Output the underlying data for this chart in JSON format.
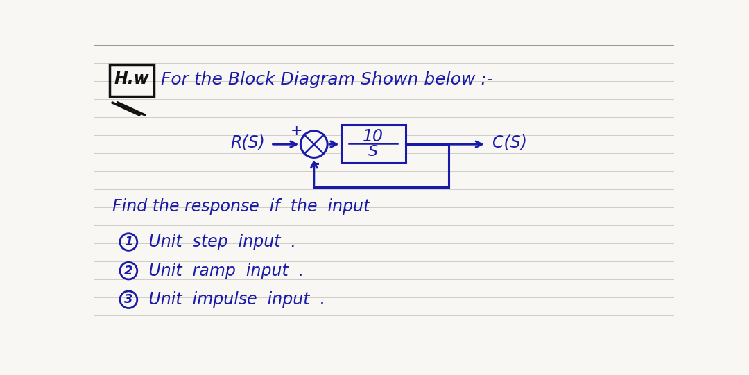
{
  "background_color": "#f8f7f4",
  "line_color": "#c8c5c0",
  "ink_color": "#1a1aaa",
  "hw_ink": "#111111",
  "title_text": "For the Block Diagram Shown below :-",
  "hw_box_text": "H.w",
  "block_num": "10",
  "block_den": "S",
  "input_label": "R(S)",
  "output_label": "C(S)",
  "find_text": "Find the response  if  the  input",
  "item1_num": "1",
  "item1_text": " Unit  step  input  .",
  "item2_num": "2",
  "item2_text": " Unit  ramp  input  .",
  "item3_num": "3",
  "item3_text": " Unit  impulse  input  .",
  "num_ruled_lines": 16,
  "figw": 10.8,
  "figh": 5.41
}
